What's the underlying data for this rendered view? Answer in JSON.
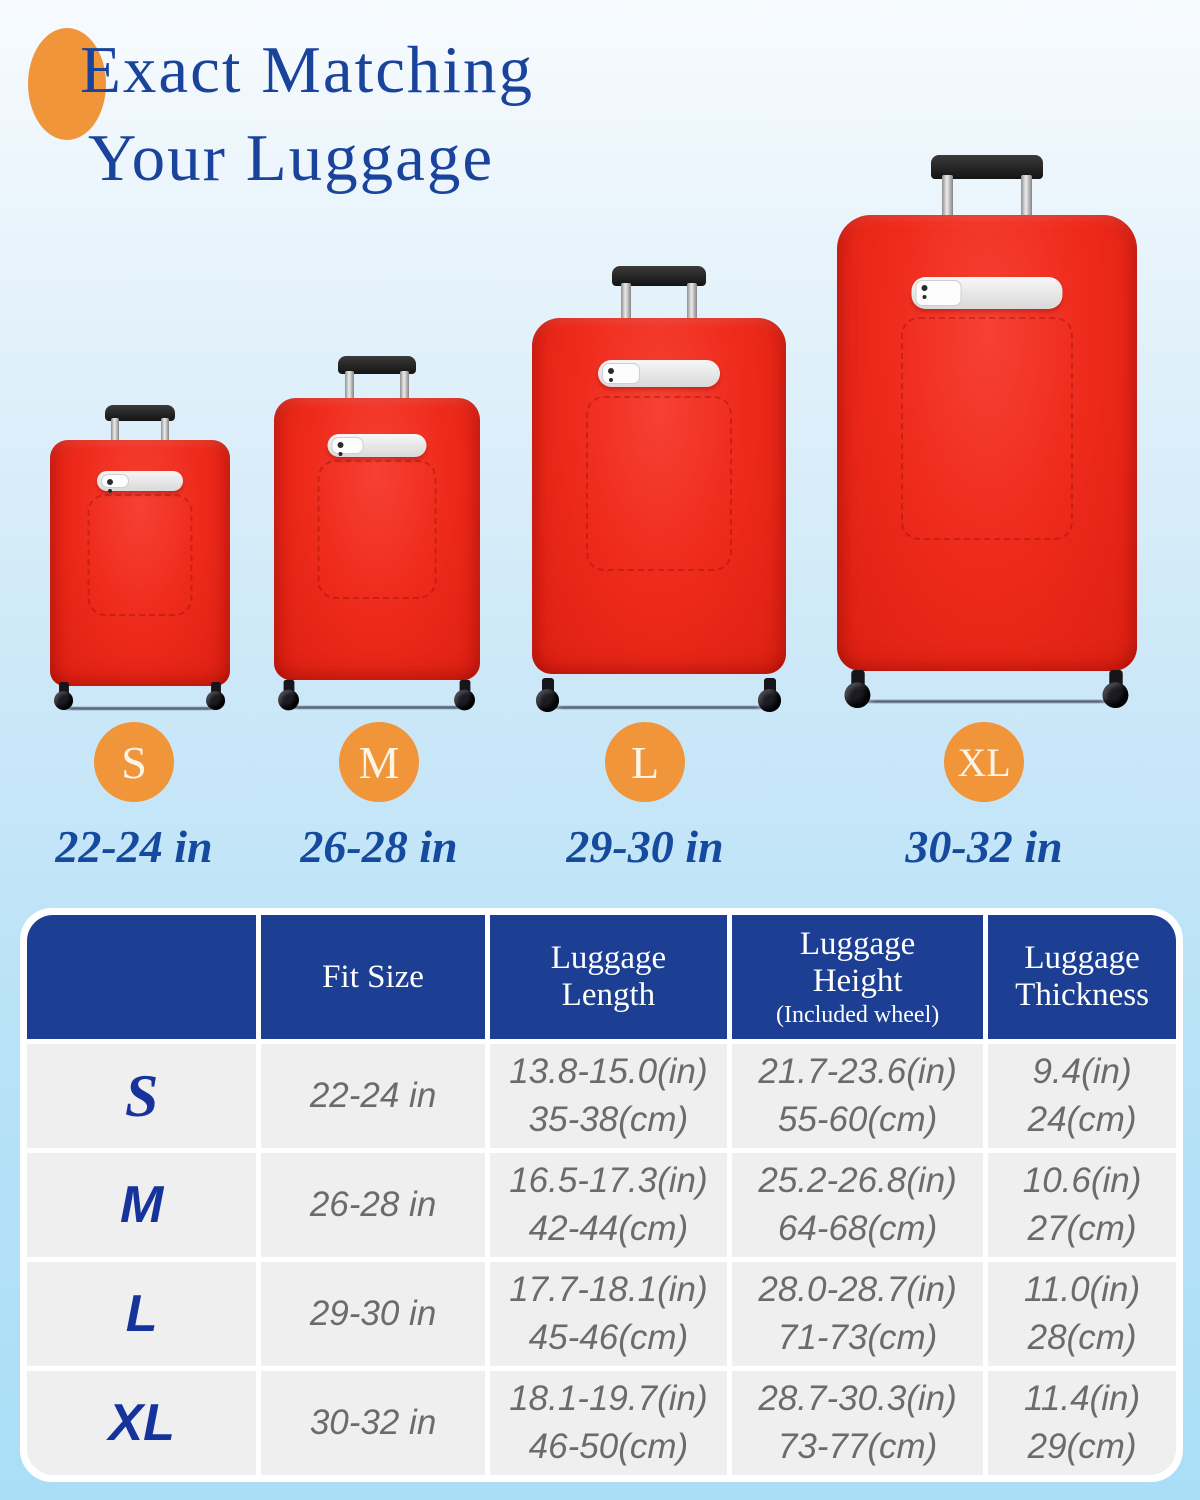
{
  "title": {
    "line1": "Exact Matching",
    "line2": "Your Luggage"
  },
  "sizes": [
    {
      "letter": "S",
      "range": "22-24 in"
    },
    {
      "letter": "M",
      "range": "26-28 in"
    },
    {
      "letter": "L",
      "range": "29-30 in"
    },
    {
      "letter": "XL",
      "range": "30-32 in"
    }
  ],
  "table": {
    "headers": [
      "",
      "Fit Size",
      "Luggage Length",
      "Luggage Height",
      "Luggage Thickness"
    ],
    "height_note": "(Included wheel)",
    "rows": [
      {
        "size": "S",
        "fit": "22-24 in",
        "length_in": "13.8-15.0(in)",
        "length_cm": "35-38(cm)",
        "height_in": "21.7-23.6(in)",
        "height_cm": "55-60(cm)",
        "thickness_in": "9.4(in)",
        "thickness_cm": "24(cm)"
      },
      {
        "size": "M",
        "fit": "26-28 in",
        "length_in": "16.5-17.3(in)",
        "length_cm": "42-44(cm)",
        "height_in": "25.2-26.8(in)",
        "height_cm": "64-68(cm)",
        "thickness_in": "10.6(in)",
        "thickness_cm": "27(cm)"
      },
      {
        "size": "L",
        "fit": "29-30 in",
        "length_in": "17.7-18.1(in)",
        "length_cm": "45-46(cm)",
        "height_in": "28.0-28.7(in)",
        "height_cm": "71-73(cm)",
        "thickness_in": "11.0(in)",
        "thickness_cm": "28(cm)"
      },
      {
        "size": "XL",
        "fit": "30-32 in",
        "length_in": "18.1-19.7(in)",
        "length_cm": "46-50(cm)",
        "height_in": "28.7-30.3(in)",
        "height_cm": "73-77(cm)",
        "thickness_in": "11.4(in)",
        "thickness_cm": "29(cm)"
      }
    ]
  },
  "colors": {
    "accent_orange": "#F0953A",
    "title_navy": "#1A449C",
    "header_navy": "#1C3F94",
    "suitcase_red": "#EE2A1B",
    "cell_gray": "#EFEFEF"
  },
  "chart_data": {
    "type": "table",
    "title": "Exact Matching Your Luggage",
    "columns": [
      "Fit Size",
      "Luggage Length",
      "Luggage Height (Included wheel)",
      "Luggage Thickness"
    ],
    "rows": [
      {
        "size": "S",
        "fit_size": "22-24 in",
        "luggage_length": "13.8-15.0(in) / 35-38(cm)",
        "luggage_height": "21.7-23.6(in) / 55-60(cm)",
        "luggage_thickness": "9.4(in) / 24(cm)"
      },
      {
        "size": "M",
        "fit_size": "26-28 in",
        "luggage_length": "16.5-17.3(in) / 42-44(cm)",
        "luggage_height": "25.2-26.8(in) / 64-68(cm)",
        "luggage_thickness": "10.6(in) / 27(cm)"
      },
      {
        "size": "L",
        "fit_size": "29-30 in",
        "luggage_length": "17.7-18.1(in) / 45-46(cm)",
        "luggage_height": "28.0-28.7(in) / 71-73(cm)",
        "luggage_thickness": "11.0(in) / 28(cm)"
      },
      {
        "size": "XL",
        "fit_size": "30-32 in",
        "luggage_length": "18.1-19.7(in) / 46-50(cm)",
        "luggage_height": "28.7-30.3(in) / 73-77(cm)",
        "luggage_thickness": "11.4(in) / 29(cm)"
      }
    ]
  }
}
